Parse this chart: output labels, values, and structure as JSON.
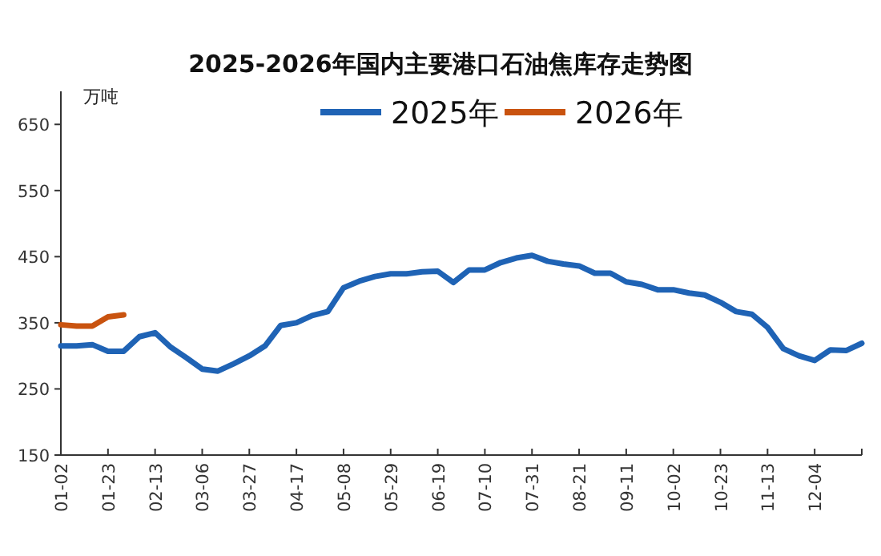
{
  "chart_data": {
    "type": "line",
    "title": "2025-2026年国内主要港口石油焦库存走势图",
    "ylabel": "万吨",
    "legend": "top",
    "grid": false,
    "marker": "none",
    "line_style": "solid",
    "xlim": [
      "--01-02",
      "--12-25"
    ],
    "xticks": [
      {
        "value": "--01-02",
        "label": "01-02"
      },
      {
        "value": "--01-23",
        "label": "01-23"
      },
      {
        "value": "--02-13",
        "label": "02-13"
      },
      {
        "value": "--03-06",
        "label": "03-06"
      },
      {
        "value": "--03-27",
        "label": "03-27"
      },
      {
        "value": "--04-17",
        "label": "04-17"
      },
      {
        "value": "--05-08",
        "label": "05-08"
      },
      {
        "value": "--05-29",
        "label": "05-29"
      },
      {
        "value": "--06-19",
        "label": "06-19"
      },
      {
        "value": "--07-10",
        "label": "07-10"
      },
      {
        "value": "--07-31",
        "label": "07-31"
      },
      {
        "value": "--08-21",
        "label": "08-21"
      },
      {
        "value": "--09-11",
        "label": "09-11"
      },
      {
        "value": "--10-02",
        "label": "10-02"
      },
      {
        "value": "--10-23",
        "label": "10-23"
      },
      {
        "value": "--11-13",
        "label": "11-13"
      },
      {
        "value": "--12-04",
        "label": "12-04"
      }
    ],
    "ylim": [
      150,
      700
    ],
    "yticks": [
      150,
      250,
      350,
      450,
      550,
      650
    ],
    "series": [
      {
        "name": "2025年",
        "color": "#1f63b5",
        "x": [
          "--01-02",
          "--01-09",
          "--01-16",
          "--01-23",
          "--01-30",
          "--02-06",
          "--02-13",
          "--02-20",
          "--02-27",
          "--03-06",
          "--03-13",
          "--03-20",
          "--03-27",
          "--04-03",
          "--04-10",
          "--04-17",
          "--04-24",
          "--05-01",
          "--05-08",
          "--05-15",
          "--05-22",
          "--05-29",
          "--06-05",
          "--06-12",
          "--06-19",
          "--06-26",
          "--07-03",
          "--07-10",
          "--07-17",
          "--07-24",
          "--07-31",
          "--08-07",
          "--08-14",
          "--08-21",
          "--08-28",
          "--09-04",
          "--09-11",
          "--09-18",
          "--09-25",
          "--10-02",
          "--10-09",
          "--10-16",
          "--10-23",
          "--10-30",
          "--11-06",
          "--11-13",
          "--11-20",
          "--11-27",
          "--12-04",
          "--12-11",
          "--12-18",
          "--12-25"
        ],
        "values": [
          315,
          315,
          317,
          307,
          307,
          329,
          335,
          313,
          297,
          280,
          277,
          288,
          300,
          315,
          346,
          350,
          361,
          367,
          403,
          413,
          420,
          424,
          424,
          427,
          428,
          411,
          430,
          430,
          441,
          448,
          452,
          443,
          439,
          436,
          425,
          425,
          412,
          408,
          400,
          400,
          395,
          392,
          381,
          367,
          363,
          343,
          311,
          300,
          293,
          309,
          308,
          319
        ]
      },
      {
        "name": "2026年",
        "color": "#c9530f",
        "x": [
          "--01-02",
          "--01-09",
          "--01-16",
          "--01-23",
          "--01-30"
        ],
        "values": [
          347,
          345,
          345,
          359,
          362
        ]
      }
    ]
  }
}
